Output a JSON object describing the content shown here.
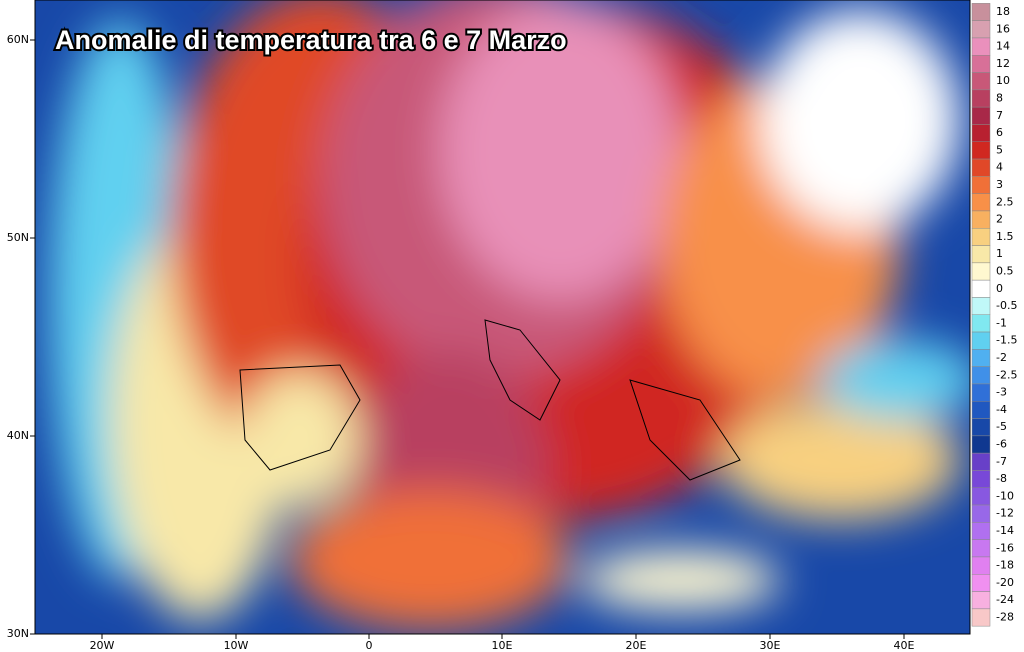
{
  "header": {
    "title": "Anomalie di temperatura tra 6 e 7 Marzo"
  },
  "axes": {
    "lon_labels": [
      "20W",
      "10W",
      "0",
      "10E",
      "20E",
      "30E",
      "40E"
    ],
    "lat_labels": [
      "60N",
      "50N",
      "40N",
      "30N"
    ]
  },
  "legend": {
    "items": [
      {
        "value": 18,
        "color": "#c8909c"
      },
      {
        "value": 16,
        "color": "#d8a0b0"
      },
      {
        "value": 14,
        "color": "#ea90bc"
      },
      {
        "value": 12,
        "color": "#d87098"
      },
      {
        "value": 10,
        "color": "#c85878"
      },
      {
        "value": 8,
        "color": "#b84060"
      },
      {
        "value": 7,
        "color": "#a82848"
      },
      {
        "value": 6,
        "color": "#b82030"
      },
      {
        "value": 5,
        "color": "#d02820"
      },
      {
        "value": 4,
        "color": "#e04828"
      },
      {
        "value": 3,
        "color": "#f07038"
      },
      {
        "value": 2.5,
        "color": "#f89048"
      },
      {
        "value": 2,
        "color": "#f8b060"
      },
      {
        "value": 1.5,
        "color": "#f8d080"
      },
      {
        "value": 1,
        "color": "#f8e8a8"
      },
      {
        "value": 0.5,
        "color": "#fff8d0"
      },
      {
        "value": 0,
        "color": "#ffffff"
      },
      {
        "value": -0.5,
        "color": "#c0f8f8"
      },
      {
        "value": -1,
        "color": "#80e8f0"
      },
      {
        "value": -1.5,
        "color": "#60d0f0"
      },
      {
        "value": -2,
        "color": "#50b0f0"
      },
      {
        "value": -2.5,
        "color": "#4090e8"
      },
      {
        "value": -3,
        "color": "#3070d8"
      },
      {
        "value": -4,
        "color": "#2058c0"
      },
      {
        "value": -5,
        "color": "#1848a8"
      },
      {
        "value": -6,
        "color": "#103890"
      },
      {
        "value": -7,
        "color": "#6840c8"
      },
      {
        "value": -8,
        "color": "#7848d8"
      },
      {
        "value": -10,
        "color": "#8858e0"
      },
      {
        "value": -12,
        "color": "#9868e8"
      },
      {
        "value": -14,
        "color": "#b070f0"
      },
      {
        "value": -16,
        "color": "#c878f0"
      },
      {
        "value": -18,
        "color": "#e080f0"
      },
      {
        "value": -20,
        "color": "#f090f0"
      },
      {
        "value": -24,
        "color": "#f8b0e0"
      },
      {
        "value": -28,
        "color": "#f8c8c8"
      }
    ]
  }
}
